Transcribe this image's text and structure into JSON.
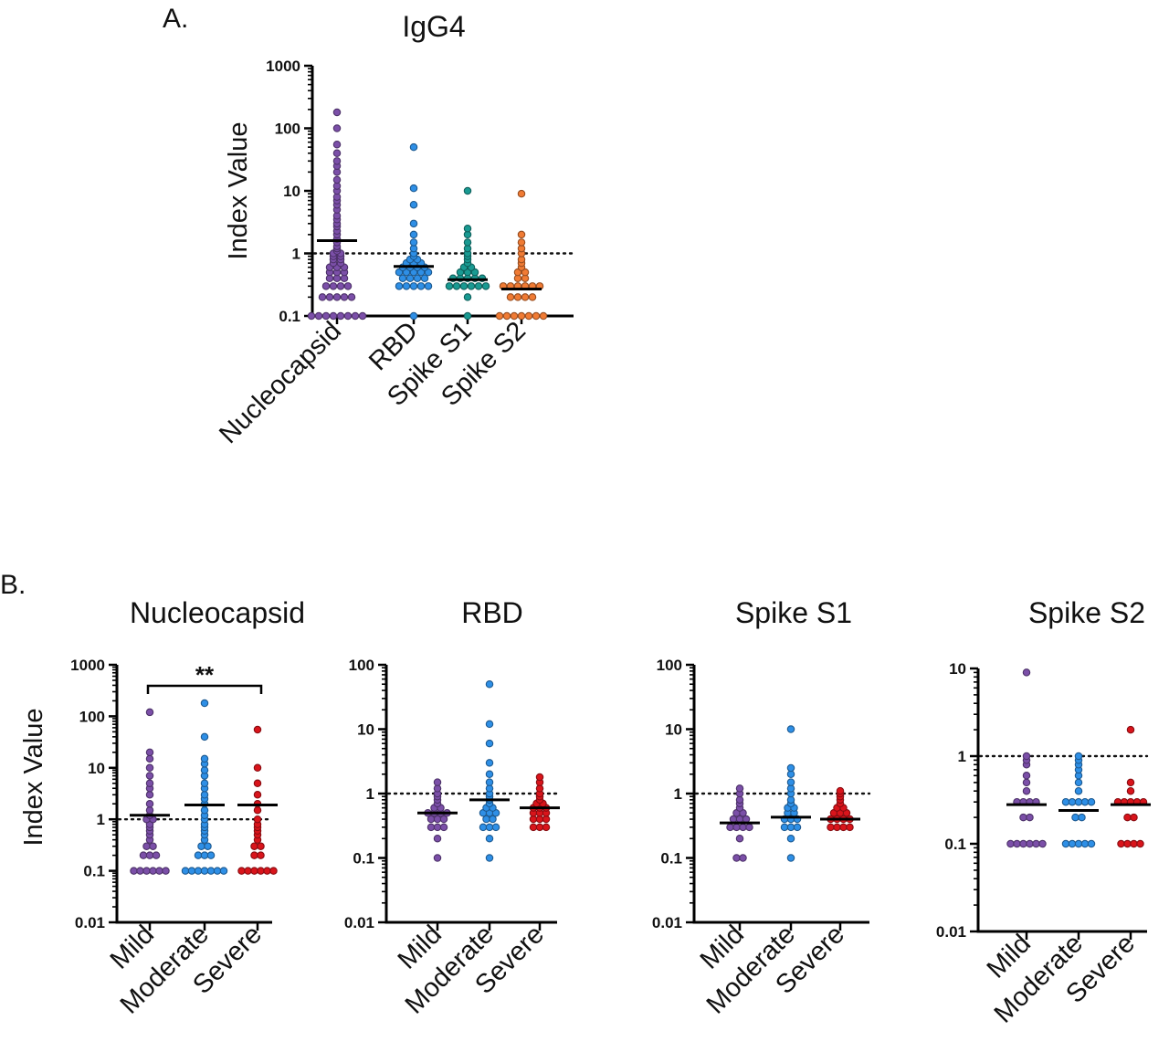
{
  "figure": {
    "panel_a_label": "A.",
    "panel_b_label": "B.",
    "significance": "**",
    "ylabel": "Index Value"
  },
  "chart_data": [
    {
      "type": "scatter",
      "panel": "A",
      "title": "IgG4",
      "ylabel": "Index Value",
      "yscale": "log",
      "ylim": [
        0.1,
        1000
      ],
      "yticks": [
        "0.1",
        "1",
        "10",
        "100",
        "1000"
      ],
      "reference_line": 1,
      "categories": [
        "Nucleocapsid",
        "RBD",
        "Spike S1",
        "Spike S2"
      ],
      "colors": [
        "#7b4fa8",
        "#2e8fe6",
        "#199a92",
        "#f07b34"
      ],
      "series": [
        {
          "values": [
            0.1,
            0.1,
            0.1,
            0.1,
            0.1,
            0.1,
            0.1,
            0.1,
            0.2,
            0.2,
            0.2,
            0.2,
            0.2,
            0.3,
            0.3,
            0.3,
            0.3,
            0.4,
            0.4,
            0.4,
            0.5,
            0.5,
            0.5,
            0.6,
            0.6,
            0.6,
            0.7,
            0.7,
            0.8,
            0.8,
            0.9,
            0.9,
            1,
            1,
            1.1,
            1.2,
            1.3,
            1.5,
            1.7,
            2,
            2.3,
            2.7,
            3,
            3.5,
            4,
            5,
            6,
            7,
            8,
            10,
            12,
            15,
            20,
            25,
            30,
            40,
            55,
            100,
            180
          ],
          "mean": 1.6
        },
        {
          "values": [
            0.1,
            0.3,
            0.3,
            0.3,
            0.3,
            0.3,
            0.4,
            0.4,
            0.4,
            0.4,
            0.5,
            0.5,
            0.5,
            0.5,
            0.5,
            0.6,
            0.6,
            0.6,
            0.6,
            0.7,
            0.7,
            0.7,
            0.8,
            0.8,
            0.9,
            1,
            1.2,
            1.5,
            2,
            3,
            6,
            11,
            50
          ],
          "mean": 0.62
        },
        {
          "values": [
            0.1,
            0.2,
            0.3,
            0.3,
            0.3,
            0.3,
            0.3,
            0.3,
            0.4,
            0.4,
            0.4,
            0.4,
            0.4,
            0.5,
            0.5,
            0.5,
            0.6,
            0.6,
            0.7,
            0.8,
            0.9,
            1,
            1.2,
            1.5,
            2,
            2.5,
            10
          ],
          "mean": 0.38
        },
        {
          "values": [
            0.1,
            0.1,
            0.1,
            0.1,
            0.1,
            0.1,
            0.1,
            0.2,
            0.2,
            0.2,
            0.2,
            0.3,
            0.3,
            0.3,
            0.3,
            0.3,
            0.3,
            0.4,
            0.4,
            0.5,
            0.5,
            0.6,
            0.7,
            0.8,
            1,
            1.2,
            1.5,
            2,
            9
          ],
          "mean": 0.27
        }
      ]
    },
    {
      "type": "scatter",
      "panel": "B",
      "title": "Nucleocapsid",
      "ylabel": "Index Value",
      "yscale": "log",
      "ylim": [
        0.01,
        1000
      ],
      "yticks": [
        "0.01",
        "0.1",
        "1",
        "10",
        "100",
        "1000"
      ],
      "reference_line": 1,
      "significance": {
        "text": "**",
        "between": [
          "Mild",
          "Severe"
        ]
      },
      "categories": [
        "Mild",
        "Moderate",
        "Severe"
      ],
      "colors": [
        "#7b4fa8",
        "#2e8fe6",
        "#d9141b"
      ],
      "series": [
        {
          "values": [
            0.1,
            0.1,
            0.1,
            0.1,
            0.1,
            0.1,
            0.2,
            0.2,
            0.2,
            0.3,
            0.3,
            0.4,
            0.5,
            0.6,
            0.7,
            0.8,
            1,
            1,
            1.2,
            1.5,
            2,
            3,
            4,
            5,
            7,
            10,
            15,
            20,
            120
          ],
          "mean": 1.2
        },
        {
          "values": [
            0.1,
            0.1,
            0.1,
            0.1,
            0.1,
            0.1,
            0.1,
            0.2,
            0.2,
            0.2,
            0.3,
            0.3,
            0.4,
            0.5,
            0.6,
            0.7,
            0.8,
            1,
            1.2,
            1.5,
            2,
            2.5,
            3,
            4,
            5,
            7,
            9,
            12,
            15,
            40,
            180
          ],
          "mean": 1.9
        },
        {
          "values": [
            0.1,
            0.1,
            0.1,
            0.1,
            0.1,
            0.1,
            0.2,
            0.2,
            0.3,
            0.3,
            0.4,
            0.5,
            0.6,
            0.7,
            0.8,
            1,
            1.5,
            2,
            3,
            5,
            10,
            55
          ],
          "mean": 1.9
        }
      ]
    },
    {
      "type": "scatter",
      "panel": "B",
      "title": "RBD",
      "yscale": "log",
      "ylim": [
        0.01,
        100
      ],
      "yticks": [
        "0.01",
        "0.1",
        "1",
        "10",
        "100"
      ],
      "reference_line": 1,
      "categories": [
        "Mild",
        "Moderate",
        "Severe"
      ],
      "colors": [
        "#7b4fa8",
        "#2e8fe6",
        "#d9141b"
      ],
      "series": [
        {
          "values": [
            0.1,
            0.2,
            0.3,
            0.3,
            0.3,
            0.4,
            0.4,
            0.4,
            0.5,
            0.5,
            0.5,
            0.5,
            0.6,
            0.6,
            0.7,
            0.8,
            0.9,
            1,
            1.2,
            1.5
          ],
          "mean": 0.5
        },
        {
          "values": [
            0.1,
            0.2,
            0.3,
            0.3,
            0.3,
            0.4,
            0.4,
            0.5,
            0.5,
            0.5,
            0.6,
            0.6,
            0.7,
            0.8,
            0.9,
            1,
            1.2,
            1.5,
            2,
            3,
            6,
            12,
            50
          ],
          "mean": 0.8
        },
        {
          "values": [
            0.3,
            0.3,
            0.3,
            0.4,
            0.4,
            0.4,
            0.5,
            0.5,
            0.5,
            0.6,
            0.6,
            0.6,
            0.7,
            0.7,
            0.8,
            0.9,
            1,
            1.2,
            1.5,
            1.8
          ],
          "mean": 0.6
        }
      ]
    },
    {
      "type": "scatter",
      "panel": "B",
      "title": "Spike S1",
      "yscale": "log",
      "ylim": [
        0.01,
        100
      ],
      "yticks": [
        "0.01",
        "0.1",
        "1",
        "10",
        "100"
      ],
      "reference_line": 1,
      "categories": [
        "Mild",
        "Moderate",
        "Severe"
      ],
      "colors": [
        "#7b4fa8",
        "#2e8fe6",
        "#d9141b"
      ],
      "series": [
        {
          "values": [
            0.1,
            0.1,
            0.2,
            0.3,
            0.3,
            0.3,
            0.3,
            0.4,
            0.4,
            0.4,
            0.5,
            0.5,
            0.6,
            0.7,
            0.8,
            1,
            1.2
          ],
          "mean": 0.35
        },
        {
          "values": [
            0.1,
            0.2,
            0.3,
            0.3,
            0.3,
            0.4,
            0.4,
            0.4,
            0.5,
            0.5,
            0.6,
            0.6,
            0.7,
            0.8,
            1,
            1.2,
            1.5,
            2,
            2.5,
            10
          ],
          "mean": 0.43
        },
        {
          "values": [
            0.3,
            0.3,
            0.3,
            0.3,
            0.4,
            0.4,
            0.4,
            0.4,
            0.5,
            0.5,
            0.5,
            0.6,
            0.6,
            0.7,
            0.8,
            0.9,
            1,
            1.1
          ],
          "mean": 0.4
        }
      ]
    },
    {
      "type": "scatter",
      "panel": "B",
      "title": "Spike S2",
      "yscale": "log",
      "ylim": [
        0.01,
        10
      ],
      "yticks": [
        "0.01",
        "0.1",
        "1",
        "10"
      ],
      "reference_line": 1,
      "categories": [
        "Mild",
        "Moderate",
        "Severe"
      ],
      "colors": [
        "#7b4fa8",
        "#2e8fe6",
        "#d9141b"
      ],
      "series": [
        {
          "values": [
            0.1,
            0.1,
            0.1,
            0.1,
            0.1,
            0.1,
            0.2,
            0.2,
            0.3,
            0.3,
            0.3,
            0.3,
            0.4,
            0.5,
            0.6,
            0.8,
            0.9,
            1,
            9
          ],
          "mean": 0.28
        },
        {
          "values": [
            0.1,
            0.1,
            0.1,
            0.1,
            0.1,
            0.2,
            0.2,
            0.3,
            0.3,
            0.3,
            0.3,
            0.3,
            0.4,
            0.5,
            0.6,
            0.7,
            0.8,
            0.9,
            1
          ],
          "mean": 0.24
        },
        {
          "values": [
            0.1,
            0.1,
            0.1,
            0.1,
            0.2,
            0.2,
            0.3,
            0.3,
            0.3,
            0.3,
            0.3,
            0.4,
            0.5,
            2
          ],
          "mean": 0.28
        }
      ]
    }
  ]
}
